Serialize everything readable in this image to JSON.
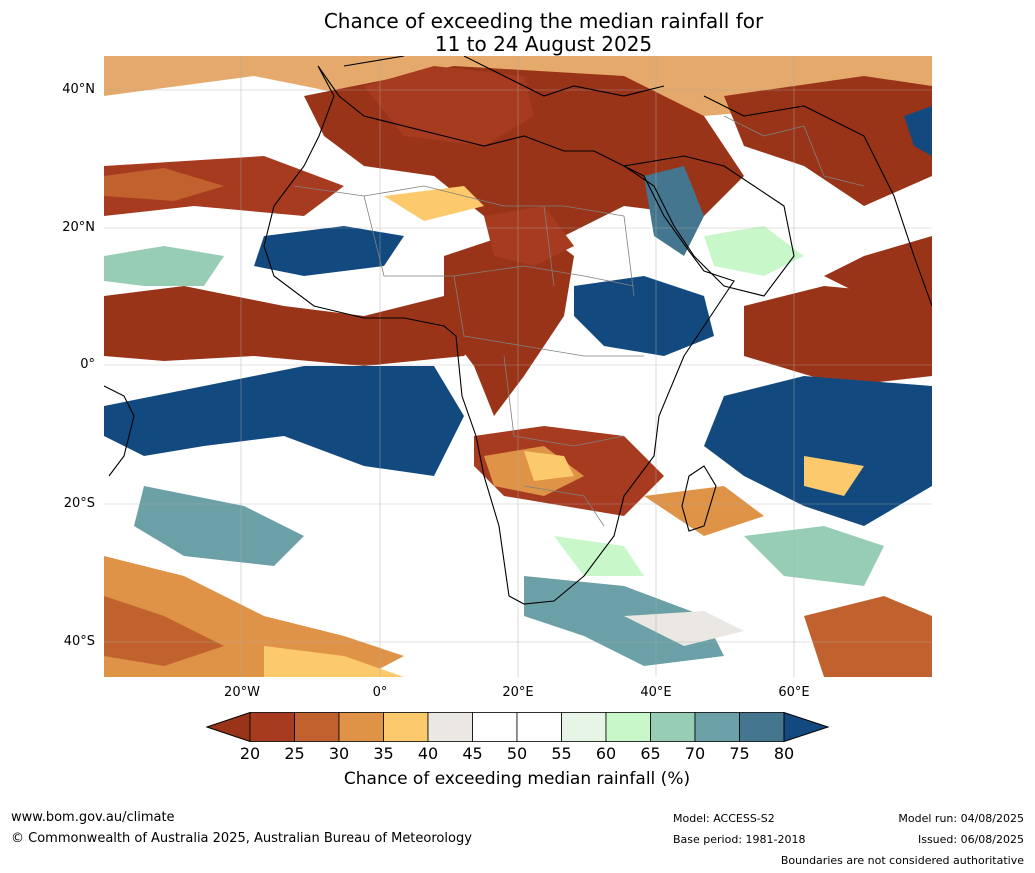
{
  "title": {
    "line1": "Chance of exceeding the median rainfall for",
    "line2": "11 to 24 August 2025"
  },
  "map": {
    "lat_labels": [
      "40°N",
      "20°N",
      "0°",
      "20°S",
      "40°S"
    ],
    "lon_labels": [
      "20°W",
      "0°",
      "20°E",
      "40°E",
      "60°E"
    ]
  },
  "colorbar": {
    "ticks": [
      "20",
      "25",
      "30",
      "35",
      "40",
      "45",
      "50",
      "55",
      "60",
      "65",
      "70",
      "75",
      "80"
    ],
    "colors": [
      "#9a3419",
      "#a63b1f",
      "#c1622e",
      "#df9347",
      "#fcca6d",
      "#ebe8e3",
      "#ffffff",
      "#ffffff",
      "#e6f5e6",
      "#c8f8ca",
      "#96cdb4",
      "#6aa0a6",
      "#44778f",
      "#124a7f"
    ],
    "label": "Chance of exceeding median rainfall (%)"
  },
  "footer": {
    "website": "www.bom.gov.au/climate",
    "copyright": "© Commonwealth of Australia 2025, Australian Bureau of Meteorology",
    "model": "Model: ACCESS-S2",
    "base_period": "Base period: 1981-2018",
    "model_run": "Model run: 04/08/2025",
    "issued": "Issued: 06/08/2025",
    "disclaimer": "Boundaries are not considered authoritative"
  }
}
